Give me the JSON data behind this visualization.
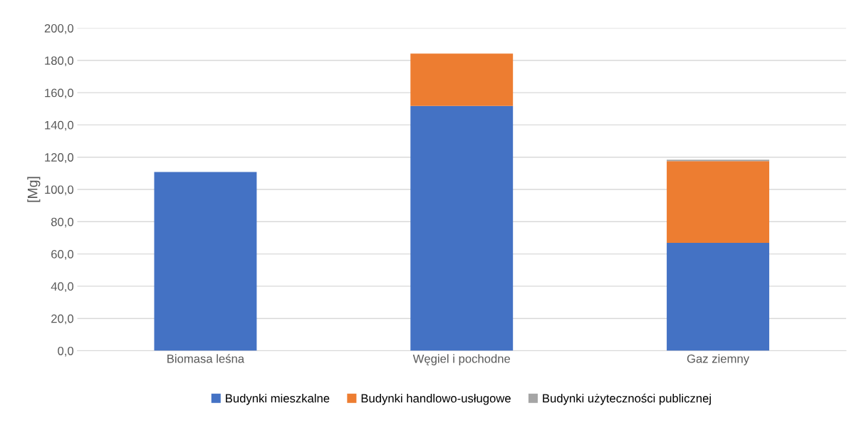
{
  "chart_data": {
    "type": "bar",
    "stacked": true,
    "ylabel": "[Mg]",
    "categories": [
      "Biomasa leśna",
      "Węgiel i pochodne",
      "Gaz ziemny"
    ],
    "series": [
      {
        "name": "Budynki mieszkalne",
        "color": "#4472c4",
        "values": [
          110.8,
          151.8,
          66.9
        ]
      },
      {
        "name": "Budynki handlowo-usługowe",
        "color": "#ed7d31",
        "values": [
          0,
          32.4,
          50.6
        ]
      },
      {
        "name": "Budynki użyteczności publicznej",
        "color": "#a5a5a5",
        "values": [
          0,
          0,
          0.9
        ]
      }
    ],
    "ylim": [
      0,
      200
    ],
    "yticks": [
      {
        "value": 0,
        "label": "0,0"
      },
      {
        "value": 20,
        "label": "20,0"
      },
      {
        "value": 40,
        "label": "40,0"
      },
      {
        "value": 60,
        "label": "60,0"
      },
      {
        "value": 80,
        "label": "80,0"
      },
      {
        "value": 100,
        "label": "100,0"
      },
      {
        "value": 120,
        "label": "120,0"
      },
      {
        "value": 140,
        "label": "140,0"
      },
      {
        "value": 160,
        "label": "160,0"
      },
      {
        "value": 180,
        "label": "180,0"
      },
      {
        "value": 200,
        "label": "200,0"
      }
    ],
    "grid": "y",
    "legend": "bottom"
  }
}
